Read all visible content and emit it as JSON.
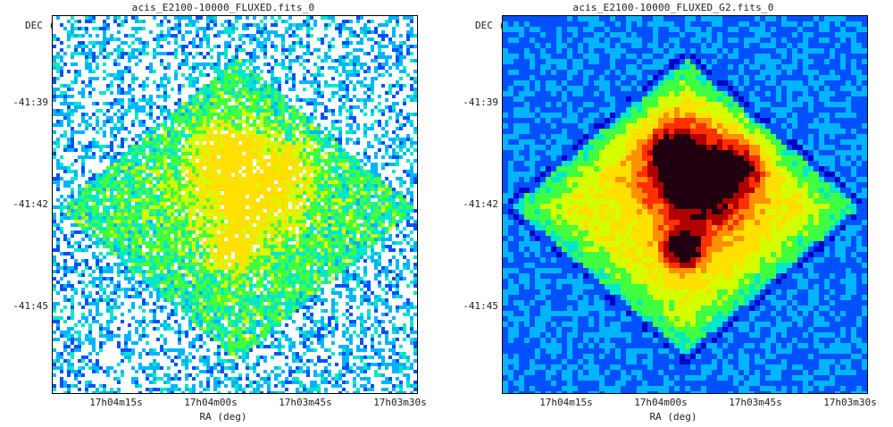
{
  "panels": [
    {
      "title": "acis_E2100-10000_FLUXED.fits_0",
      "y_label": "DEC (deg)",
      "x_label": "RA (deg)",
      "y_ticks": [
        "-41:39",
        "-41:42",
        "-41:45"
      ],
      "x_ticks": [
        "17h04m15s",
        "17h04m00s",
        "17h03m45s",
        "17h03m30s"
      ],
      "image_kind": "raw-fluxed-counts"
    },
    {
      "title": "acis_E2100-10000_FLUXED_G2.fits_0",
      "y_label": "DEC (deg)",
      "x_label": "RA (deg)",
      "y_ticks": [
        "-41:39",
        "-41:42",
        "-41:45"
      ],
      "x_ticks": [
        "17h04m15s",
        "17h04m00s",
        "17h03m45s",
        "17h03m30s"
      ],
      "image_kind": "gaussian-smoothed"
    }
  ],
  "colors": {
    "background": "#ffffff",
    "frame": "#000000",
    "colormap": [
      "#0000c8",
      "#0050ff",
      "#00b4ff",
      "#00e8c8",
      "#40ff40",
      "#d4ff00",
      "#ffe000",
      "#ff9000",
      "#ff3000",
      "#b00000",
      "#200010"
    ]
  }
}
